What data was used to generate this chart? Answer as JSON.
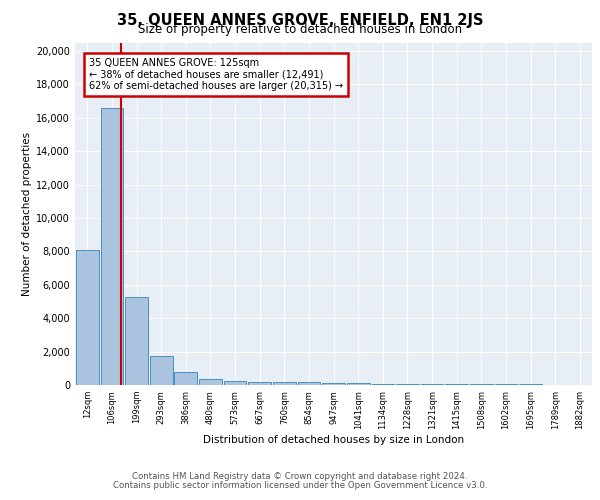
{
  "title_line1": "35, QUEEN ANNES GROVE, ENFIELD, EN1 2JS",
  "title_line2": "Size of property relative to detached houses in London",
  "xlabel": "Distribution of detached houses by size in London",
  "ylabel": "Number of detached properties",
  "bar_labels": [
    "12sqm",
    "106sqm",
    "199sqm",
    "293sqm",
    "386sqm",
    "480sqm",
    "573sqm",
    "667sqm",
    "760sqm",
    "854sqm",
    "947sqm",
    "1041sqm",
    "1134sqm",
    "1228sqm",
    "1321sqm",
    "1415sqm",
    "1508sqm",
    "1602sqm",
    "1695sqm",
    "1789sqm",
    "1882sqm"
  ],
  "bar_values": [
    8100,
    16600,
    5250,
    1750,
    750,
    350,
    250,
    200,
    175,
    175,
    125,
    100,
    80,
    70,
    60,
    50,
    40,
    35,
    30,
    25,
    20
  ],
  "bar_color": "#aac4e0",
  "bar_edge_color": "#4a90c4",
  "background_color": "#e8eef5",
  "red_line_x": 1.38,
  "annotation_text_line1": "35 QUEEN ANNES GROVE: 125sqm",
  "annotation_text_line2": "← 38% of detached houses are smaller (12,491)",
  "annotation_text_line3": "62% of semi-detached houses are larger (20,315) →",
  "annotation_box_color": "#ffffff",
  "annotation_box_edge": "#cc0000",
  "ylim": [
    0,
    20500
  ],
  "yticks": [
    0,
    2000,
    4000,
    6000,
    8000,
    10000,
    12000,
    14000,
    16000,
    18000,
    20000
  ],
  "footer_line1": "Contains HM Land Registry data © Crown copyright and database right 2024.",
  "footer_line2": "Contains public sector information licensed under the Open Government Licence v3.0."
}
